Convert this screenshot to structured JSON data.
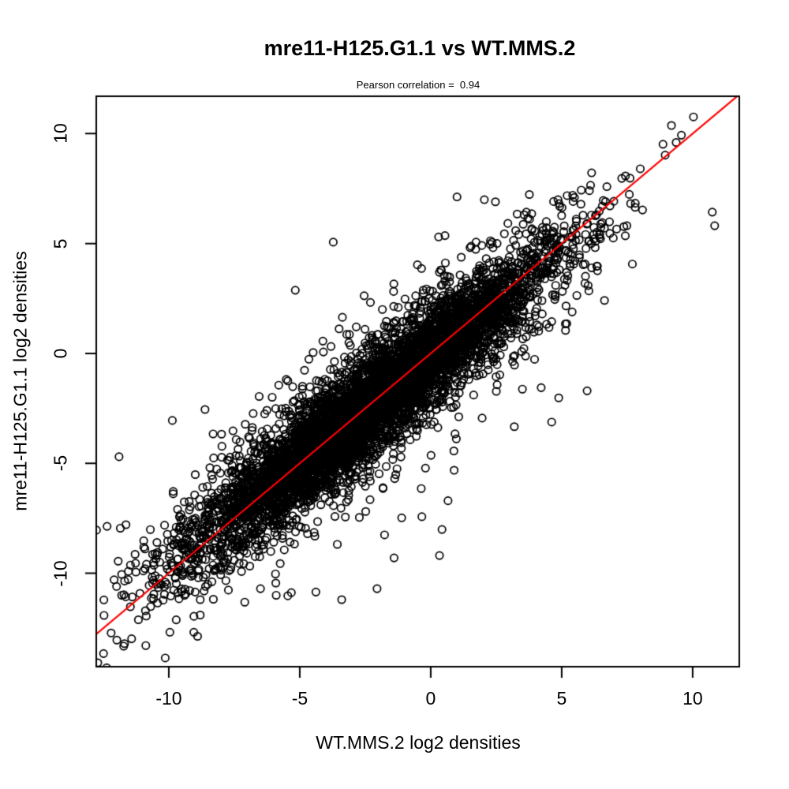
{
  "chart_data": {
    "type": "scatter",
    "title": "mre11-H125.G1.1 vs WT.MMS.2",
    "subtitle": "Pearson correlation =  0.94",
    "xlabel": "WT.MMS.2 log2 densities",
    "ylabel": "mre11-H125.G1.1 log2 densities",
    "pearson_correlation": 0.94,
    "xlim": [
      -12.77,
      11.78
    ],
    "ylim": [
      -14.25,
      11.7
    ],
    "x_ticks": [
      "-10",
      "-5",
      "0",
      "5",
      "10"
    ],
    "y_ticks": [
      "-10",
      "-5",
      "0",
      "5",
      "10"
    ],
    "x_tick_values": [
      -10,
      -5,
      0,
      5,
      10
    ],
    "y_tick_values": [
      -10,
      -5,
      0,
      5,
      10
    ],
    "grid": false,
    "background_color": "#FFFFFF",
    "point_color": "#000000",
    "reference_line": {
      "type": "identity",
      "slope": 1,
      "intercept": 0,
      "color": "#FF0000",
      "width": 2.2
    },
    "marker": {
      "shape": "open-circle",
      "radius": 4.7,
      "stroke_width": 1.7
    },
    "cloud_model": {
      "description": "dense elongated cloud of ~6500 open circles along the y=x diagonal, correlation 0.94",
      "seed": 42,
      "core": {
        "n": 5600,
        "along_mean": -2.3,
        "along_sd": 3.3,
        "noise_sd": 0.8
      },
      "halo": {
        "n": 750,
        "along_mean": -2.3,
        "along_sd": 3.4,
        "noise_sd": 1.5
      },
      "stray": {
        "n": 120,
        "along_mean": -2.6,
        "along_sd": 4.0,
        "noise_sd": 2.5
      }
    },
    "outlier_points": [
      [
        10.75,
        6.43
      ],
      [
        10.84,
        5.81
      ],
      [
        10.03,
        10.76
      ],
      [
        9.37,
        9.6
      ],
      [
        8.95,
        9.02
      ],
      [
        8.0,
        8.4
      ],
      [
        2.47,
        6.9
      ],
      [
        0.3,
        5.3
      ],
      [
        -11.69,
        -13.2
      ],
      [
        -11.42,
        -12.98
      ],
      [
        -11.8,
        -11.0
      ],
      [
        -11.8,
        -10.05
      ],
      [
        -11.85,
        -7.95
      ],
      [
        -11.9,
        -4.7
      ],
      [
        -9.4,
        -11.0
      ],
      [
        -8.8,
        -11.2
      ],
      [
        -8.8,
        -11.9
      ],
      [
        -8.6,
        -10.6
      ],
      [
        -6.5,
        -10.7
      ],
      [
        -5.9,
        -11.0
      ],
      [
        -3.4,
        -11.2
      ],
      [
        -2.05,
        -10.7
      ],
      [
        -1.4,
        -9.3
      ],
      [
        0.66,
        -6.7
      ]
    ]
  }
}
